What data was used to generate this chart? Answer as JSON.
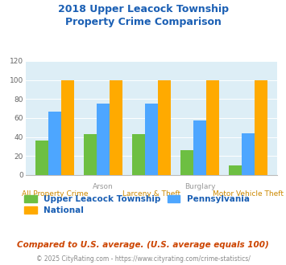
{
  "title": "2018 Upper Leacock Township\nProperty Crime Comparison",
  "township_values": [
    36,
    43,
    43,
    26,
    10
  ],
  "pennsylvania_values": [
    67,
    75,
    75,
    57,
    44
  ],
  "national_values": [
    100,
    100,
    100,
    100,
    100
  ],
  "township_color": "#6dbf42",
  "pennsylvania_color": "#4da6ff",
  "national_color": "#ffaa00",
  "plot_bg": "#ddeef6",
  "ylim": [
    0,
    120
  ],
  "yticks": [
    0,
    20,
    40,
    60,
    80,
    100,
    120
  ],
  "title_color": "#1a5fb4",
  "upper_row_labels": [
    "",
    "Arson",
    "",
    "Burglary",
    ""
  ],
  "lower_row_labels": [
    "All Property Crime",
    "",
    "Larceny & Theft",
    "",
    "Motor Vehicle Theft"
  ],
  "upper_label_color": "#999999",
  "lower_label_color": "#cc8800",
  "subtitle": "Compared to U.S. average. (U.S. average equals 100)",
  "subtitle_color": "#cc4400",
  "footer": "© 2025 CityRating.com - https://www.cityrating.com/crime-statistics/",
  "footer_color": "#888888"
}
